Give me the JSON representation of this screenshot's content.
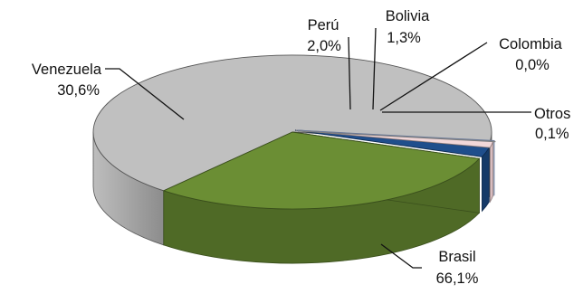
{
  "chart_data": {
    "type": "pie",
    "title": "",
    "slices": [
      {
        "label": "Brasil",
        "value_label": "66,1%",
        "value": 66.1,
        "color": "#c0c0c0",
        "side_color": "#a9a9a9",
        "edge_color": "#555555"
      },
      {
        "label": "Venezuela",
        "value_label": "30,6%",
        "value": 30.6,
        "color": "#6b8e34",
        "side_color": "#4f6a26",
        "edge_color": "#3a4f1c"
      },
      {
        "label": "Perú",
        "value_label": "2,0%",
        "value": 2.0,
        "color": "#1f4e8c",
        "side_color": "#153a68",
        "edge_color": "#0e2a4e"
      },
      {
        "label": "Bolivia",
        "value_label": "1,3%",
        "value": 1.3,
        "color": "#f2d7d9",
        "side_color": "#d9bcbf",
        "edge_color": "#8f7f80"
      },
      {
        "label": "Colombia",
        "value_label": "0,0%",
        "value": 0.0,
        "color": "#b7c7e6",
        "side_color": "#9badd0",
        "edge_color": "#6b7a99"
      },
      {
        "label": "Otros",
        "value_label": "0,1%",
        "value": 0.1,
        "color": "#e6e6e6",
        "side_color": "#cfcfcf",
        "edge_color": "#7f7f7f"
      }
    ]
  }
}
